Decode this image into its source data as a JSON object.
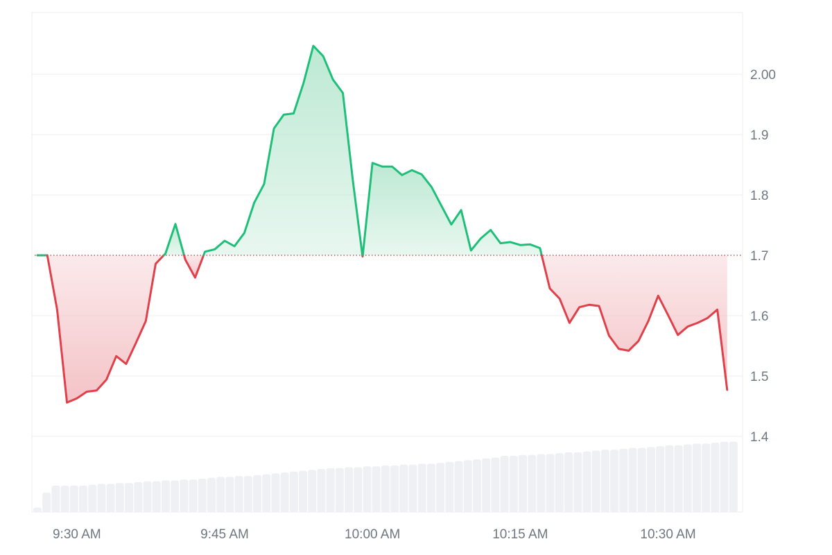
{
  "chart_data": {
    "type": "area",
    "title": "",
    "xlabel": "",
    "ylabel": "",
    "baseline": 1.7,
    "xlim": [
      "9:26",
      "10:37"
    ],
    "ylim": [
      1.3,
      2.1
    ],
    "grid": true,
    "legend": "none",
    "colors": {
      "up": "#1fbf7a",
      "down": "#e0404a",
      "up_fill": "#bde9d3",
      "down_fill": "#f4c3c7",
      "volume": "#eef0f3",
      "grid": "#ececec",
      "baseline": "#b85a5a"
    },
    "x_ticks": [
      "9:30 AM",
      "9:45 AM",
      "10:00 AM",
      "10:15 AM",
      "10:30 AM"
    ],
    "x_tick_times": [
      "9:30",
      "9:45",
      "10:00",
      "10:15",
      "10:30"
    ],
    "y_ticks": [
      "1.4",
      "1.5",
      "1.6",
      "1.7",
      "1.8",
      "1.9",
      "2.00"
    ],
    "y_tick_values": [
      1.4,
      1.5,
      1.6,
      1.7,
      1.8,
      1.9,
      2.0
    ],
    "series": [
      {
        "values": [
          [
            "9:26",
            1.7
          ],
          [
            "9:27",
            1.7
          ],
          [
            "9:28",
            1.61
          ],
          [
            "9:29",
            1.456
          ],
          [
            "9:30",
            1.463
          ],
          [
            "9:31",
            1.474
          ],
          [
            "9:32",
            1.476
          ],
          [
            "9:33",
            1.494
          ],
          [
            "9:34",
            1.533
          ],
          [
            "9:35",
            1.52
          ],
          [
            "9:36",
            1.555
          ],
          [
            "9:37",
            1.591
          ],
          [
            "9:38",
            1.686
          ],
          [
            "9:39",
            1.703
          ],
          [
            "9:40",
            1.752
          ],
          [
            "9:41",
            1.693
          ],
          [
            "9:42",
            1.663
          ],
          [
            "9:43",
            1.706
          ],
          [
            "9:44",
            1.71
          ],
          [
            "9:45",
            1.724
          ],
          [
            "9:46",
            1.715
          ],
          [
            "9:47",
            1.737
          ],
          [
            "9:48",
            1.787
          ],
          [
            "9:49",
            1.818
          ],
          [
            "9:50",
            1.91
          ],
          [
            "9:51",
            1.933
          ],
          [
            "9:52",
            1.935
          ],
          [
            "9:53",
            1.985
          ],
          [
            "9:54",
            2.047
          ],
          [
            "9:55",
            2.03
          ],
          [
            "9:56",
            1.991
          ],
          [
            "9:57",
            1.969
          ],
          [
            "9:58",
            1.825
          ],
          [
            "9:59",
            1.698
          ],
          [
            "10:00",
            1.853
          ],
          [
            "10:01",
            1.847
          ],
          [
            "10:02",
            1.847
          ],
          [
            "10:03",
            1.833
          ],
          [
            "10:04",
            1.841
          ],
          [
            "10:05",
            1.834
          ],
          [
            "10:06",
            1.813
          ],
          [
            "10:07",
            1.782
          ],
          [
            "10:08",
            1.751
          ],
          [
            "10:09",
            1.775
          ],
          [
            "10:10",
            1.708
          ],
          [
            "10:11",
            1.728
          ],
          [
            "10:12",
            1.742
          ],
          [
            "10:13",
            1.72
          ],
          [
            "10:14",
            1.722
          ],
          [
            "10:15",
            1.717
          ],
          [
            "10:16",
            1.718
          ],
          [
            "10:17",
            1.712
          ],
          [
            "10:18",
            1.645
          ],
          [
            "10:19",
            1.628
          ],
          [
            "10:20",
            1.588
          ],
          [
            "10:21",
            1.614
          ],
          [
            "10:22",
            1.618
          ],
          [
            "10:23",
            1.616
          ],
          [
            "10:24",
            1.567
          ],
          [
            "10:25",
            1.545
          ],
          [
            "10:26",
            1.542
          ],
          [
            "10:27",
            1.558
          ],
          [
            "10:28",
            1.591
          ],
          [
            "10:29",
            1.633
          ],
          [
            "10:30",
            1.601
          ],
          [
            "10:31",
            1.568
          ],
          [
            "10:32",
            1.582
          ],
          [
            "10:33",
            1.588
          ],
          [
            "10:34",
            1.596
          ],
          [
            "10:35",
            1.61
          ],
          [
            "10:36",
            1.477
          ]
        ]
      }
    ],
    "volume": [
      0.05,
      0.22,
      0.3,
      0.3,
      0.3,
      0.3,
      0.31,
      0.32,
      0.32,
      0.33,
      0.33,
      0.34,
      0.35,
      0.35,
      0.36,
      0.36,
      0.37,
      0.37,
      0.38,
      0.39,
      0.4,
      0.4,
      0.41,
      0.41,
      0.42,
      0.43,
      0.44,
      0.45,
      0.46,
      0.47,
      0.48,
      0.49,
      0.5,
      0.5,
      0.51,
      0.51,
      0.52,
      0.52,
      0.53,
      0.53,
      0.54,
      0.54,
      0.55,
      0.55,
      0.56,
      0.57,
      0.58,
      0.59,
      0.6,
      0.61,
      0.62,
      0.64,
      0.64,
      0.65,
      0.65,
      0.66,
      0.66,
      0.67,
      0.68,
      0.68,
      0.69,
      0.7,
      0.71,
      0.71,
      0.72,
      0.73,
      0.73,
      0.74,
      0.75,
      0.76,
      0.76,
      0.77,
      0.78,
      0.78,
      0.79,
      0.8,
      0.8
    ]
  }
}
